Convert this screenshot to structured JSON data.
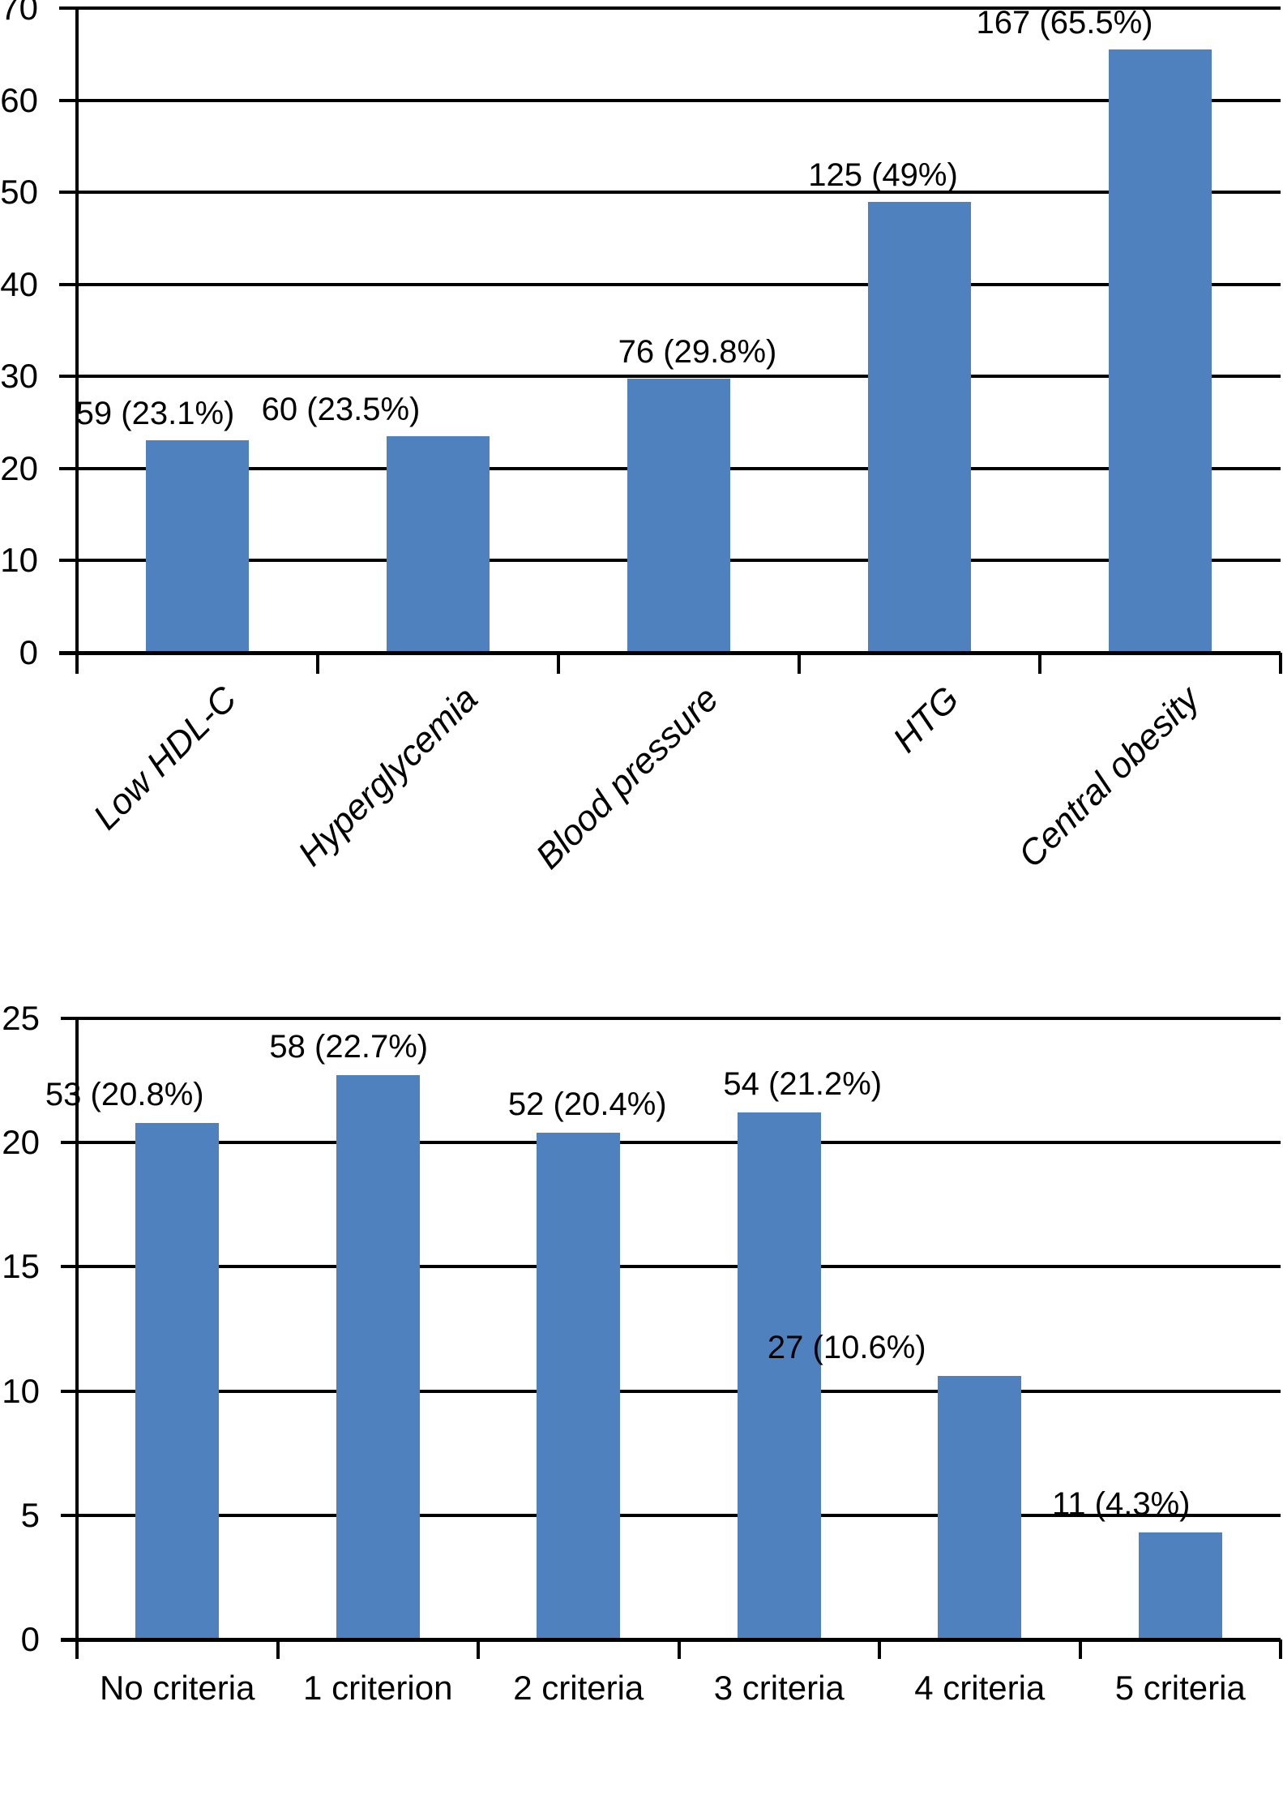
{
  "figure": {
    "background": "#ffffff",
    "bar_color": "#4E81BD",
    "line_color": "#000000",
    "text_color": "#000000"
  },
  "chart_data": [
    {
      "type": "bar",
      "title": "",
      "xlabel": "",
      "ylabel": "",
      "categories": [
        "Low HDL-C",
        "Hyperglycemia",
        "Blood pressure",
        "HTG",
        "Central obesity"
      ],
      "counts": [
        59,
        60,
        76,
        125,
        167
      ],
      "values": [
        23.1,
        23.5,
        29.8,
        49,
        65.5
      ],
      "bar_labels": [
        "59 (23.1%)",
        "60 (23.5%)",
        "76 (29.8%)",
        "125 (49%)",
        "167 (65.5%)"
      ],
      "ylim": [
        0,
        70
      ],
      "ytick_step": 10,
      "grid": true,
      "legend": "none",
      "x_tick_label_style": "rotated-45-italic",
      "label_dx": [
        -52,
        -120,
        23,
        -45,
        -118
      ]
    },
    {
      "type": "bar",
      "title": "",
      "xlabel": "",
      "ylabel": "",
      "categories": [
        "No criteria",
        "1 criterion",
        "2 criteria",
        "3 criteria",
        "4 criteria",
        "5 criteria"
      ],
      "counts": [
        53,
        58,
        52,
        54,
        27,
        11
      ],
      "values": [
        20.8,
        22.7,
        20.4,
        21.2,
        10.6,
        4.3
      ],
      "bar_labels": [
        "53 (20.8%)",
        "58 (22.7%)",
        "52 (20.4%)",
        "54 (21.2%)",
        "27 (10.6%)",
        "11 (4.3%)"
      ],
      "ylim": [
        0,
        25
      ],
      "ytick_step": 5,
      "grid": true,
      "legend": "none",
      "x_tick_label_style": "horizontal",
      "label_dx": [
        -65,
        -36,
        11,
        29,
        -164,
        -73
      ]
    }
  ]
}
